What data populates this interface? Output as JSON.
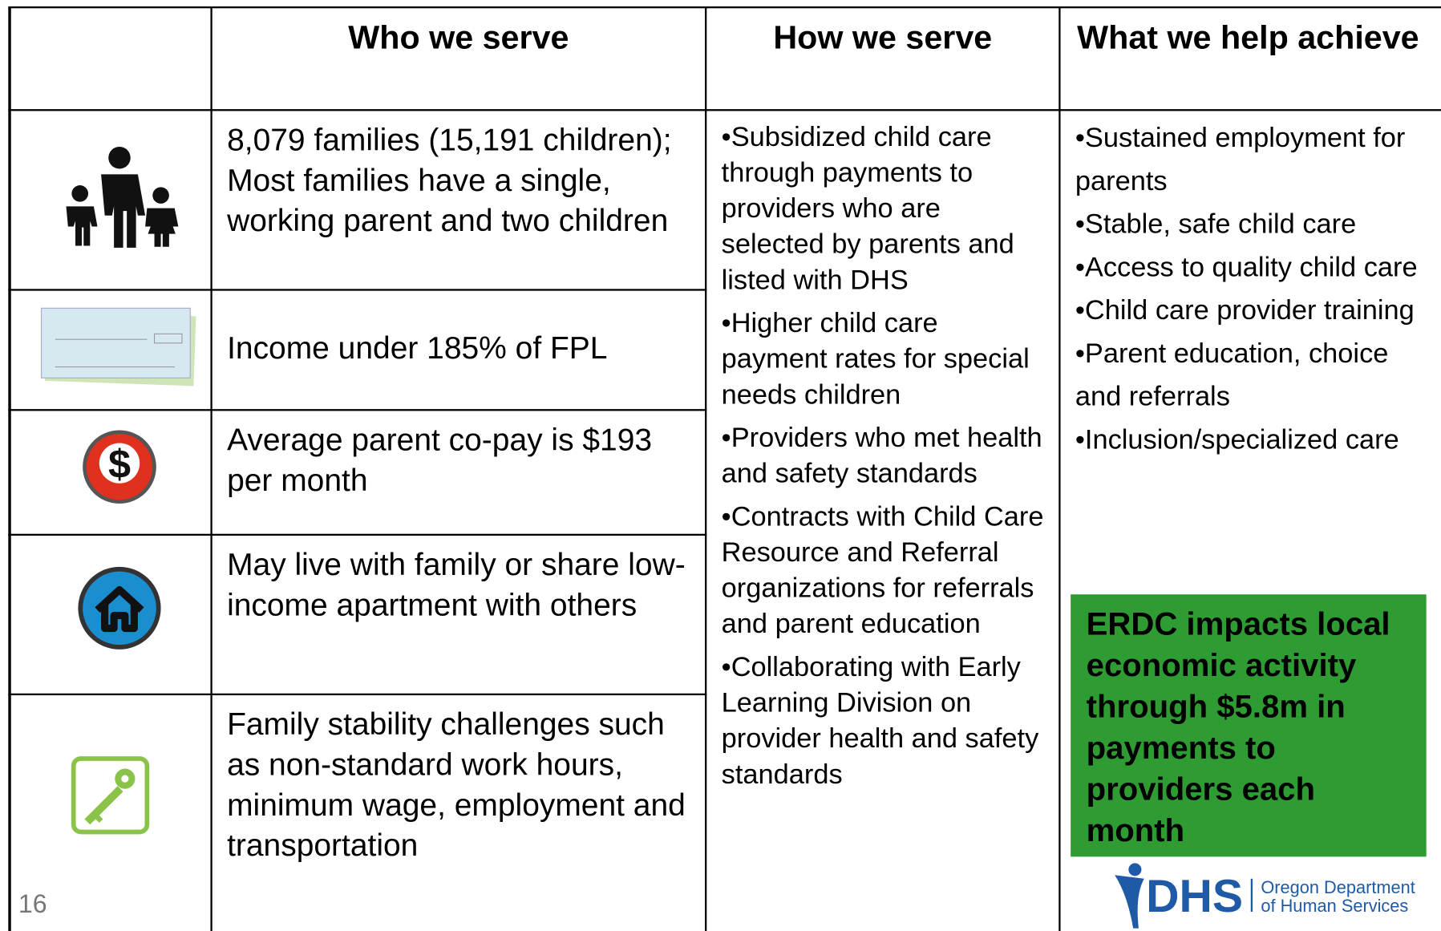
{
  "header": {
    "columns": [
      "Who we serve",
      "How we serve",
      "What we help achieve"
    ]
  },
  "rows": [
    "8,079 families (15,191 children); Most families have a single, working parent and two children",
    "Income under 185% of FPL",
    "Average parent co-pay is $193 per month",
    "May live with family or share low-income apartment with others",
    "Family stability challenges such as non-standard work hours, minimum wage, employment and transportation"
  ],
  "how": [
    "Subsidized child care through payments to providers who are selected by parents and listed with DHS",
    "Higher child care payment rates for special needs children",
    "Providers who met health and safety standards",
    "Contracts with Child Care Resource and Referral organizations for referrals and parent education",
    "Collaborating with Early Learning Division on provider health and safety standards"
  ],
  "achieve": [
    "Sustained employment for parents",
    "Stable, safe child care",
    "Access to quality child care",
    "Child care provider training",
    "Parent education, choice and referrals",
    "Inclusion/specialized care"
  ],
  "highlight": "ERDC impacts local economic activity through $5.8m in payments to providers each month",
  "logo": {
    "mark": "DHS",
    "line1": "Oregon Department",
    "line2": "of Human Services"
  },
  "page_number": "16"
}
